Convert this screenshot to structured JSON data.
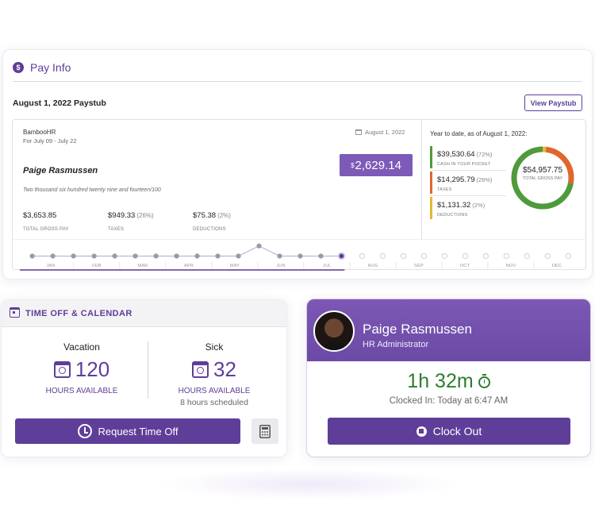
{
  "pay_info": {
    "title": "Pay Info",
    "paystub_heading": "August 1, 2022 Paystub",
    "view_button": "View Paystub",
    "stub": {
      "company": "BambooHR",
      "period": "For July 09 - July 22",
      "date": "August 1, 2022",
      "currency_symbol": "$",
      "net_amount": "2,629.14",
      "employee_name": "Paige Rasmussen",
      "amount_in_words": "Two thousand six hundred twenty nine and fourteen/100",
      "stats": [
        {
          "value": "$3,653.85",
          "pct": "",
          "label": "TOTAL GROSS PAY"
        },
        {
          "value": "$949.33",
          "pct": "(26%)",
          "label": "TAXES"
        },
        {
          "value": "$75.38",
          "pct": "(2%)",
          "label": "DEDUCTIONS"
        }
      ]
    },
    "ytd": {
      "title": "Year to date, as of August 1, 2022:",
      "rows": [
        {
          "value": "$39,530.64",
          "pct": "(72%)",
          "label": "CASH IN YOUR POCKET",
          "color": "#4f9a3a"
        },
        {
          "value": "$14,295.79",
          "pct": "(26%)",
          "label": "TAXES",
          "color": "#e0662e"
        },
        {
          "value": "$1,131.32",
          "pct": "(2%)",
          "label": "DEDUCTIONS",
          "color": "#e9b632"
        }
      ],
      "total_value": "$54,957.75",
      "total_label": "TOTAL GROSS PAY",
      "donut_shares": [
        0.72,
        0.26,
        0.02
      ]
    },
    "timeline": {
      "months": [
        "JAN",
        "FEB",
        "MAR",
        "APR",
        "MAY",
        "JUN",
        "JUL",
        "AUG",
        "SEP",
        "OCT",
        "NOV",
        "DEC"
      ],
      "dots_filled": 16,
      "dots_total": 27,
      "raised_dot": 11,
      "accent": "#5e3e98"
    }
  },
  "time_off": {
    "title": "TIME OFF & CALENDAR",
    "vacation": {
      "type": "Vacation",
      "hours": "120",
      "label": "HOURS AVAILABLE"
    },
    "sick": {
      "type": "Sick",
      "hours": "32",
      "label": "HOURS AVAILABLE",
      "scheduled": "8 hours scheduled"
    },
    "request_button": "Request Time Off"
  },
  "clock": {
    "name": "Paige Rasmussen",
    "role": "HR Administrator",
    "duration": "1h 32m",
    "clocked_in": "Clocked In: Today at 6:47 AM",
    "button": "Clock Out"
  },
  "colors": {
    "brand": "#5e3e98",
    "timer_green": "#2e7d32"
  }
}
